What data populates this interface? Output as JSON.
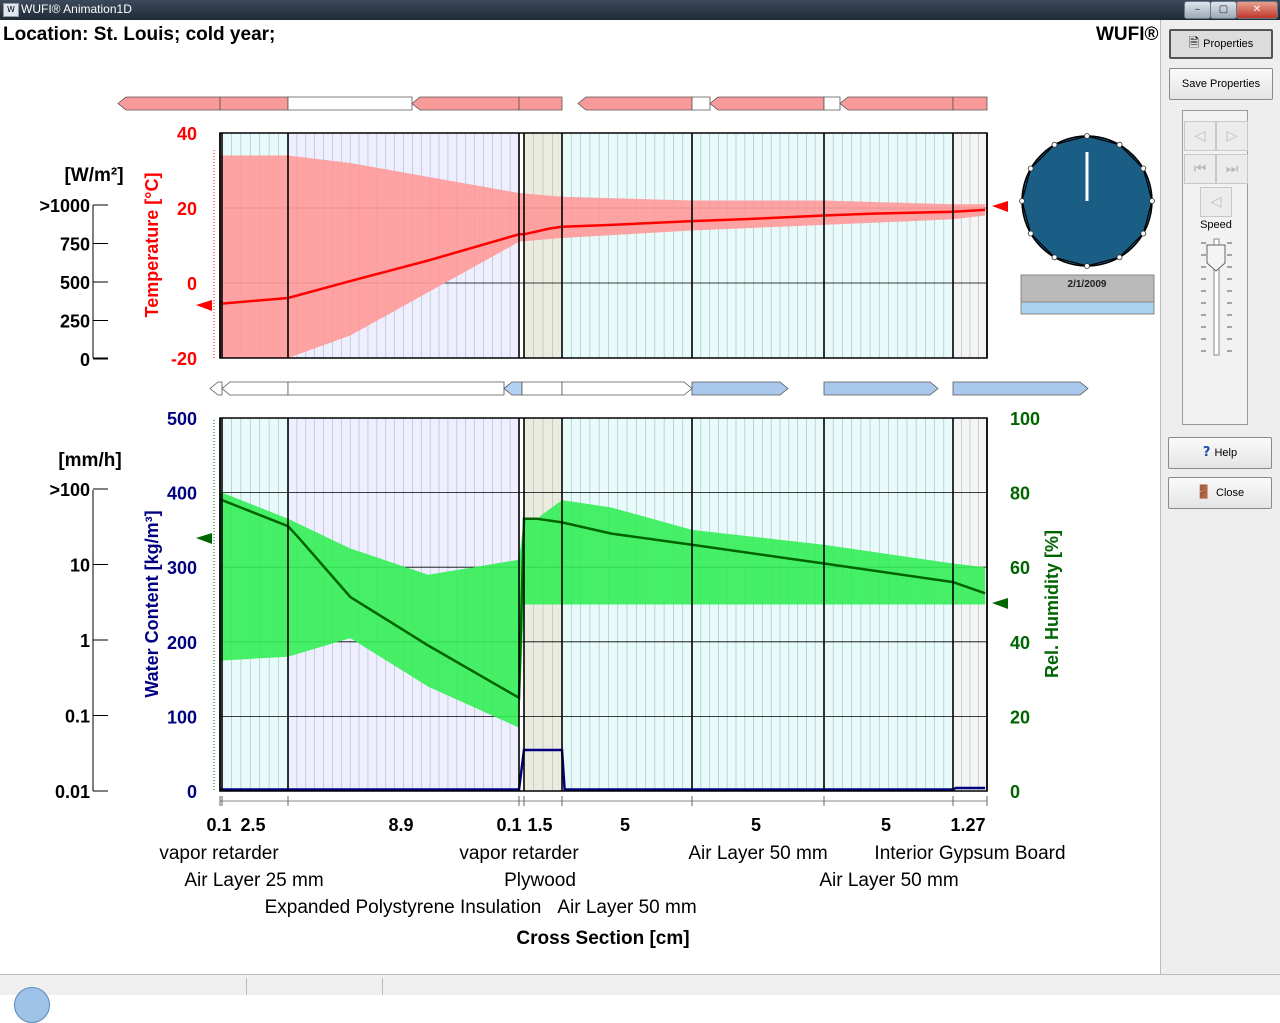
{
  "window": {
    "title": "WUFI® Animation1D",
    "buttons": {
      "minimize": "–",
      "maximize": "▢",
      "close": "✕"
    }
  },
  "header": {
    "location": "Location: St. Louis; cold year;",
    "brand": "WUFI®"
  },
  "sidebar": {
    "properties_label": "Properties",
    "save_properties_label": "Save Properties",
    "speed_label": "Speed",
    "help_label": "Help",
    "close_label": "Close"
  },
  "colors": {
    "temperature": "#ff0000",
    "temperature_band": "#ff9999",
    "water_content": "#000080",
    "humidity": "#006400",
    "humidity_band": "#33ee55",
    "clock_face": "#1b5e85",
    "layer_insulation": "#eeeeff",
    "layer_air": "#e8fafa",
    "layer_wood": "#ecebe0"
  },
  "clock": {
    "date": "2/1/2009",
    "progress_fraction": 0.0
  },
  "chart_data": [
    {
      "type": "area",
      "ylabel": "Temperature [°C]",
      "ylim": [
        -20,
        40
      ],
      "yticks": [
        40,
        20,
        0,
        -20
      ],
      "heat_flux_label": "[W/m²]",
      "heat_flux_ticks": [
        ">1000",
        "750",
        "500",
        "250",
        "0"
      ],
      "heat_flux_value": 0,
      "grid": true,
      "series": [
        {
          "x": [
            0,
            0.1,
            2.6,
            5,
            8,
            11.5,
            11.6,
            12.6,
            13.1,
            15,
            18.1,
            20,
            23.1,
            25,
            28.1,
            29.3
          ],
          "values": [
            -5,
            -5.5,
            -4,
            0.5,
            6,
            13,
            13,
            14.5,
            15,
            15.5,
            16.5,
            17,
            18,
            18.5,
            19,
            19.5
          ]
        },
        {
          "x": [
            0,
            2.6,
            5,
            11.5,
            13.1,
            18.1,
            23.1,
            28.1,
            29.3
          ],
          "values": [
            34,
            34,
            32,
            24,
            23,
            22,
            22,
            21,
            21
          ]
        },
        {
          "x": [
            0,
            2.6,
            5,
            11.5,
            13.1,
            18.1,
            23.1,
            28.1,
            29.3
          ],
          "values": [
            -20,
            -20,
            -14,
            11,
            12,
            14,
            15.5,
            17,
            18
          ]
        }
      ]
    },
    {
      "type": "area",
      "ylabel": "Water Content [kg/m³]",
      "ylabel2": "Rel. Humidity [%]",
      "ylim": [
        0,
        500
      ],
      "ylim2": [
        0,
        100
      ],
      "yticks": [
        500,
        400,
        300,
        200,
        100,
        0
      ],
      "yticks2": [
        100,
        80,
        60,
        40,
        20,
        0
      ],
      "rain_label": "[mm/h]",
      "rain_ticks": [
        ">100",
        "10",
        "1",
        "0.1",
        "0.01"
      ],
      "rain_value": 0,
      "grid": true,
      "series": [
        {
          "x": [
            0,
            0.1,
            2.6,
            3,
            5,
            8,
            11.5,
            11.6,
            12.1,
            13.1,
            15,
            18.1,
            23.1,
            28.1,
            29.3
          ],
          "values": [
            78,
            78,
            71,
            68,
            52,
            39,
            25,
            73,
            73,
            72,
            69,
            66,
            61,
            56,
            53
          ]
        },
        {
          "x": [
            0,
            0.1,
            2.6,
            5,
            8,
            11.5,
            11.6,
            12.1,
            13.1,
            15,
            18.1,
            23.1,
            28.1,
            29.3
          ],
          "values": [
            80,
            80,
            73,
            65,
            58,
            62,
            73,
            73,
            78,
            76,
            70,
            66,
            61,
            60
          ]
        },
        {
          "x": [
            0,
            0.1,
            2.6,
            5,
            8,
            11.5,
            11.6,
            12.1,
            13.1,
            15,
            18.1,
            23.1,
            28.1,
            29.3
          ],
          "values": [
            35,
            35,
            36,
            41,
            28,
            17,
            50,
            50,
            50,
            50,
            50,
            50,
            50,
            50
          ]
        },
        {
          "x": [
            0,
            11.5,
            11.6,
            13.1,
            13.2,
            28.1,
            28.2,
            29.3
          ],
          "values": [
            2,
            2,
            55,
            55,
            2,
            2,
            4,
            4
          ]
        }
      ]
    }
  ],
  "cross_section": {
    "xlabel": "Cross Section [cm]",
    "layers": [
      {
        "thickness": "0.1",
        "name": "vapor retarder",
        "material": "membrane"
      },
      {
        "thickness": "2.5",
        "name": "Air Layer 25 mm",
        "material": "air"
      },
      {
        "thickness": "8.9",
        "name": "Expanded Polystyrene Insulation",
        "material": "insulation"
      },
      {
        "thickness": "0.1",
        "name": "vapor retarder",
        "material": "membrane"
      },
      {
        "thickness": "1.5",
        "name": "Plywood",
        "material": "wood"
      },
      {
        "thickness": "5",
        "name": "Air Layer 50 mm",
        "material": "air"
      },
      {
        "thickness": "5",
        "name": "Air Layer 50 mm",
        "material": "air"
      },
      {
        "thickness": "5",
        "name": "Air Layer 50 mm",
        "material": "air"
      },
      {
        "thickness": "1.27",
        "name": "Interior Gypsum Board",
        "material": "gypsum"
      }
    ]
  }
}
